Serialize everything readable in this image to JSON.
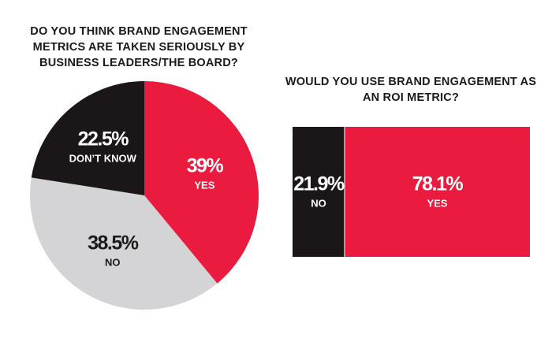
{
  "chart_data": [
    {
      "type": "pie",
      "title": "DO YOU THINK BRAND ENGAGEMENT METRICS ARE TAKEN SERIOUSLY BY BUSINESS LEADERS/THE BOARD?",
      "title_lines": [
        "DO YOU THINK BRAND ENGAGEMENT",
        "METRICS ARE TAKEN SERIOUSLY BY",
        "BUSINESS LEADERS/THE BOARD?"
      ],
      "slices": [
        {
          "label": "YES",
          "value": 39,
          "display": "39%",
          "color": "#ea1b3e",
          "text_color": "#ffffff"
        },
        {
          "label": "NO",
          "value": 38.5,
          "display": "38.5%",
          "color": "#d4d4d6",
          "text_color": "#1a1a1a"
        },
        {
          "label": "DON’T KNOW",
          "value": 22.5,
          "display": "22.5%",
          "color": "#1b1617",
          "text_color": "#ffffff"
        }
      ]
    },
    {
      "type": "bar",
      "orientation": "stacked-horizontal",
      "title": "WOULD YOU USE BRAND ENGAGEMENT AS AN ROI METRIC?",
      "title_lines": [
        "WOULD YOU USE BRAND ENGAGEMENT AS",
        "AN ROI METRIC?"
      ],
      "segments": [
        {
          "label": "NO",
          "value": 21.9,
          "display": "21.9%",
          "color": "#1b1617",
          "text_color": "#ffffff"
        },
        {
          "label": "YES",
          "value": 78.1,
          "display": "78.1%",
          "color": "#ea1b3e",
          "text_color": "#ffffff"
        }
      ]
    }
  ]
}
